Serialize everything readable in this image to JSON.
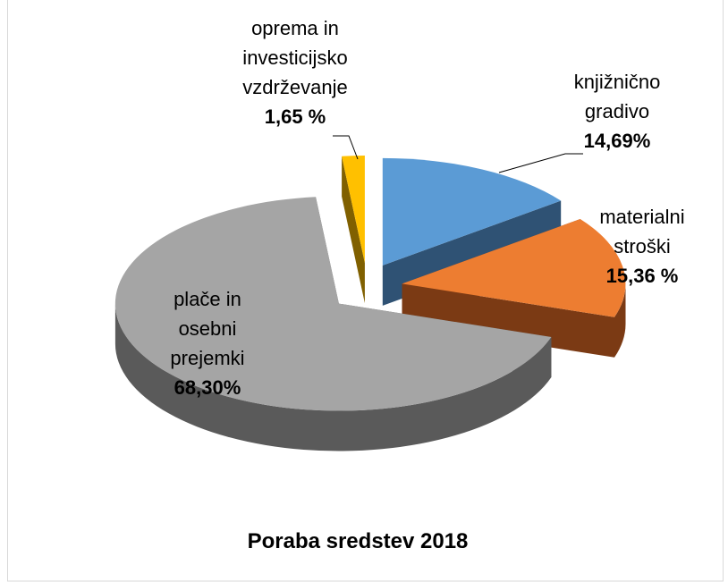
{
  "chart_data": {
    "type": "pie3d",
    "title": "Poraba sredstev 2018",
    "categories": [
      "knjižnično\ngradivo",
      "materialni\nstroški",
      "plače in\nosebni\nprejemki",
      "oprema in\ninvesticijsko\nvzdrževanje"
    ],
    "values": [
      14.69,
      15.36,
      68.3,
      1.65
    ],
    "value_labels": [
      "14,69%",
      "15,36 %",
      "68,30%",
      "1,65 %"
    ],
    "colors": [
      "#5b9bd5",
      "#ed7d31",
      "#a5a5a5",
      "#ffc000"
    ],
    "side_colors": [
      "#2f5274",
      "#7b3a14",
      "#5a5a5a",
      "#806000"
    ]
  }
}
